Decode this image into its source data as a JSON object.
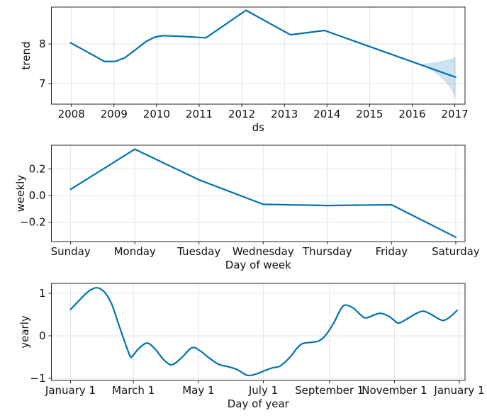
{
  "figure": {
    "colors": {
      "line": "#0072B2",
      "band": "rgba(0,114,178,0.2)",
      "grid": "#e4e4e4",
      "spine": "#262626",
      "tick": "#262626",
      "text": "#111111",
      "background": "#ffffff"
    }
  },
  "chart_data": [
    {
      "type": "line",
      "name": "trend",
      "title": "",
      "xlabel": "ds",
      "ylabel": "trend",
      "grid": true,
      "xlim": [
        2007.53,
        2017.24
      ],
      "ylim": [
        6.48,
        8.93
      ],
      "xticks": [
        2008,
        2009,
        2010,
        2011,
        2012,
        2013,
        2014,
        2015,
        2016,
        2017
      ],
      "xticklabels": [
        "2008",
        "2009",
        "2010",
        "2011",
        "2012",
        "2013",
        "2014",
        "2015",
        "2016",
        "2017"
      ],
      "yticks": [
        7,
        8
      ],
      "yticklabels": [
        "7",
        "8"
      ],
      "series": [
        {
          "name": "trend",
          "smooth": false,
          "x": [
            2007.98,
            2008.4,
            2008.78,
            2009.03,
            2009.25,
            2009.5,
            2009.75,
            2009.95,
            2010.15,
            2010.6,
            2011.0,
            2011.16,
            2012.1,
            2013.14,
            2013.94,
            2017.02
          ],
          "y": [
            8.03,
            7.78,
            7.555,
            7.56,
            7.65,
            7.85,
            8.06,
            8.17,
            8.21,
            8.19,
            8.165,
            8.155,
            8.85,
            8.23,
            8.34,
            7.16
          ]
        }
      ],
      "band": {
        "name": "trend-uncertainty-interval",
        "x": [
          2016.17,
          2016.35,
          2016.55,
          2016.75,
          2016.9,
          2017.02
        ],
        "upper": [
          7.49,
          7.51,
          7.54,
          7.585,
          7.62,
          7.67
        ],
        "lower": [
          7.49,
          7.4,
          7.26,
          7.08,
          6.88,
          6.62
        ]
      }
    },
    {
      "type": "line",
      "name": "weekly",
      "title": "",
      "xlabel": "Day of week",
      "ylabel": "weekly",
      "grid": true,
      "xlim": [
        -0.3,
        6.145
      ],
      "ylim": [
        -0.346,
        0.378
      ],
      "xticks": [
        0,
        1,
        2,
        3,
        4,
        5,
        6
      ],
      "xticklabels": [
        "Sunday",
        "Monday",
        "Tuesday",
        "Wednesday",
        "Thursday",
        "Friday",
        "Saturday"
      ],
      "yticks": [
        -0.2,
        0.0,
        0.2
      ],
      "yticklabels": [
        "−0.2",
        "0.0",
        "0.2"
      ],
      "series": [
        {
          "name": "weekly",
          "smooth": false,
          "x": [
            0,
            1,
            2,
            3,
            4,
            5,
            6
          ],
          "y": [
            0.047,
            0.348,
            0.118,
            -0.066,
            -0.075,
            -0.069,
            -0.313
          ]
        }
      ]
    },
    {
      "type": "line",
      "name": "yearly",
      "title": "",
      "xlabel": "Day of year",
      "ylabel": "yearly",
      "grid": true,
      "xlim": [
        -18,
        370.3
      ],
      "ylim": [
        -1.05,
        1.233
      ],
      "xticks": [
        0,
        59,
        120,
        181,
        243,
        304,
        365
      ],
      "xticklabels": [
        "January 1",
        "March 1",
        "May 1",
        "July 1",
        "September 1",
        "November 1",
        "January 1"
      ],
      "yticks": [
        -1,
        0,
        1
      ],
      "yticklabels": [
        "−1",
        "0",
        "1"
      ],
      "series": [
        {
          "name": "yearly",
          "smooth": true,
          "x": [
            0,
            8,
            16,
            24,
            31,
            38,
            45,
            50,
            56,
            59,
            64,
            72,
            80,
            87,
            95,
            104,
            114,
            122,
            130,
            139,
            147,
            156,
            166,
            174,
            181,
            190,
            196,
            203,
            208,
            213,
            218,
            227,
            233,
            239,
            247,
            252,
            257,
            265,
            272,
            277,
            285,
            291,
            298,
            303,
            308,
            316,
            324,
            331,
            338,
            344,
            350,
            356,
            363
          ],
          "y": [
            0.62,
            0.83,
            1.03,
            1.13,
            1.05,
            0.78,
            0.28,
            -0.08,
            -0.48,
            -0.45,
            -0.3,
            -0.17,
            -0.33,
            -0.55,
            -0.68,
            -0.52,
            -0.28,
            -0.36,
            -0.52,
            -0.67,
            -0.72,
            -0.79,
            -0.93,
            -0.9,
            -0.83,
            -0.75,
            -0.72,
            -0.58,
            -0.44,
            -0.28,
            -0.18,
            -0.15,
            -0.12,
            0.0,
            0.3,
            0.55,
            0.72,
            0.66,
            0.5,
            0.42,
            0.49,
            0.53,
            0.47,
            0.38,
            0.3,
            0.4,
            0.52,
            0.58,
            0.51,
            0.42,
            0.36,
            0.44,
            0.6
          ]
        }
      ]
    }
  ]
}
